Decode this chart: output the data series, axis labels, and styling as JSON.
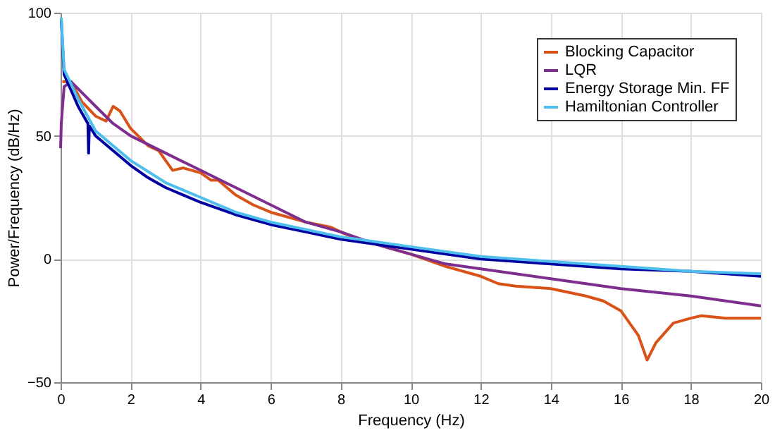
{
  "chart_data": {
    "type": "line",
    "xlabel": "Frequency (Hz)",
    "ylabel": "Power/Frequency (dB/Hz)",
    "xlim": [
      0,
      20
    ],
    "ylim": [
      -50,
      100
    ],
    "xticks": [
      0,
      2,
      4,
      6,
      8,
      10,
      12,
      14,
      16,
      18,
      20
    ],
    "yticks": [
      -50,
      0,
      50,
      100
    ],
    "grid": true,
    "legend": "top right",
    "line_style": "solid",
    "series": [
      {
        "name": "Blocking Capacitor",
        "color": "#d95319",
        "x": [
          0.05,
          0.3,
          0.6,
          1.0,
          1.3,
          1.5,
          1.7,
          2.0,
          2.5,
          2.8,
          3.0,
          3.2,
          3.5,
          4.0,
          4.3,
          4.5,
          5.0,
          5.5,
          6,
          7,
          7.7,
          8.0,
          8.5,
          9,
          10,
          11,
          12,
          12.5,
          13,
          14,
          15,
          15.5,
          16,
          16.5,
          16.75,
          17,
          17.5,
          18,
          18.3,
          19,
          20
        ],
        "values": [
          72,
          72,
          64,
          58,
          56,
          62,
          60,
          53,
          46,
          44,
          40,
          36,
          37,
          35,
          32,
          32,
          26,
          22,
          19,
          15,
          13,
          11,
          8,
          6,
          2,
          -3,
          -7,
          -10,
          -11,
          -12,
          -15,
          -17,
          -21,
          -31,
          -41,
          -34,
          -26,
          -24,
          -23,
          -24,
          -24
        ]
      },
      {
        "name": "LQR",
        "color": "#7e2f8e",
        "x": [
          0.0,
          0.02,
          0.1,
          0.3,
          1,
          1.5,
          2,
          3,
          4,
          5,
          6,
          7,
          8,
          9,
          10,
          11,
          12,
          14,
          16,
          18,
          20
        ],
        "values": [
          45,
          55,
          70,
          72,
          62,
          55,
          50,
          43,
          36,
          29,
          22,
          15,
          11,
          6,
          2,
          -2,
          -4,
          -8,
          -12,
          -15,
          -19
        ]
      },
      {
        "name": "Energy Storage Min. FF",
        "color": "#0000a0",
        "x": [
          0.02,
          0.1,
          0.5,
          0.78,
          0.8,
          0.82,
          1.0,
          2,
          2.5,
          3,
          4,
          5,
          6,
          7,
          8,
          10,
          12,
          14,
          16,
          18,
          20
        ],
        "values": [
          97,
          75,
          62,
          55,
          43,
          54,
          50,
          38,
          33,
          29,
          23,
          18,
          14,
          11,
          8,
          4,
          0,
          -2,
          -4,
          -5,
          -7
        ]
      },
      {
        "name": "Hamiltonian Controller",
        "color": "#4dbeee",
        "x": [
          0.02,
          0.1,
          0.5,
          1.0,
          2,
          3,
          4,
          5,
          6,
          8,
          10,
          12,
          14,
          16,
          18,
          20
        ],
        "values": [
          98,
          77,
          65,
          52,
          40,
          31,
          25,
          19,
          15,
          9,
          5,
          1,
          -1,
          -3,
          -5,
          -6
        ]
      }
    ]
  }
}
